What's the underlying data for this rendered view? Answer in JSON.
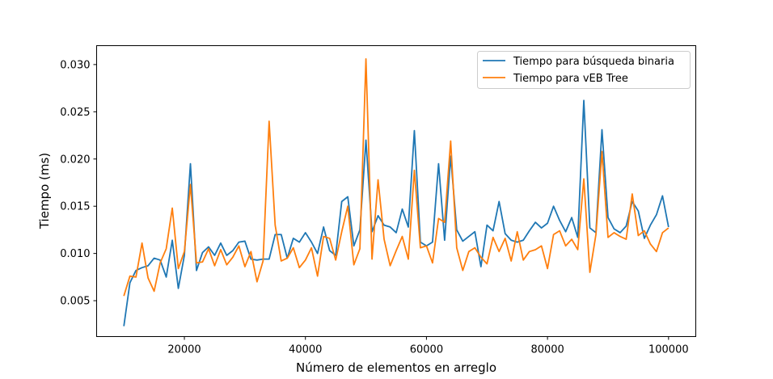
{
  "chart_data": {
    "type": "line",
    "title": "",
    "xlabel": "Número de elementos en arreglo",
    "ylabel": "Tiempo (ms)",
    "xlim": [
      5500,
      104500
    ],
    "ylim": [
      0.0012,
      0.032
    ],
    "x_ticks": [
      20000,
      40000,
      60000,
      80000,
      100000
    ],
    "x_tick_labels": [
      "20000",
      "40000",
      "60000",
      "80000",
      "100000"
    ],
    "y_ticks": [
      0.005,
      0.01,
      0.015,
      0.02,
      0.025,
      0.03
    ],
    "y_tick_labels": [
      "0.005",
      "0.010",
      "0.015",
      "0.020",
      "0.025",
      "0.030"
    ],
    "grid": false,
    "legend_position": "top-right",
    "x": [
      10000,
      11000,
      12000,
      13000,
      14000,
      15000,
      16000,
      17000,
      18000,
      19000,
      20000,
      21000,
      22000,
      23000,
      24000,
      25000,
      26000,
      27000,
      28000,
      29000,
      30000,
      31000,
      32000,
      33000,
      34000,
      35000,
      36000,
      37000,
      38000,
      39000,
      40000,
      41000,
      42000,
      43000,
      44000,
      45000,
      46000,
      47000,
      48000,
      49000,
      50000,
      51000,
      52000,
      53000,
      54000,
      55000,
      56000,
      57000,
      58000,
      59000,
      60000,
      61000,
      62000,
      63000,
      64000,
      65000,
      66000,
      67000,
      68000,
      69000,
      70000,
      71000,
      72000,
      73000,
      74000,
      75000,
      76000,
      77000,
      78000,
      79000,
      80000,
      81000,
      82000,
      83000,
      84000,
      85000,
      86000,
      87000,
      88000,
      89000,
      90000,
      91000,
      92000,
      93000,
      94000,
      95000,
      96000,
      97000,
      98000,
      99000,
      100000
    ],
    "series": [
      {
        "name": "Tiempo para búsqueda binaria",
        "color": "#1f77b4",
        "values": [
          0.0023,
          0.0069,
          0.0082,
          0.0085,
          0.0087,
          0.0095,
          0.0093,
          0.0075,
          0.0114,
          0.0063,
          0.0098,
          0.0195,
          0.0082,
          0.0101,
          0.0107,
          0.0098,
          0.0111,
          0.0098,
          0.0103,
          0.0112,
          0.0113,
          0.0094,
          0.0093,
          0.0094,
          0.0094,
          0.012,
          0.012,
          0.0095,
          0.0116,
          0.0112,
          0.0122,
          0.0112,
          0.01,
          0.0128,
          0.0103,
          0.0098,
          0.0155,
          0.016,
          0.0108,
          0.0125,
          0.022,
          0.0123,
          0.014,
          0.013,
          0.0128,
          0.0122,
          0.0147,
          0.0128,
          0.023,
          0.0112,
          0.0108,
          0.0112,
          0.0195,
          0.0114,
          0.0203,
          0.0125,
          0.0113,
          0.0118,
          0.0123,
          0.0086,
          0.013,
          0.0124,
          0.0155,
          0.0121,
          0.0114,
          0.0112,
          0.0114,
          0.0124,
          0.0133,
          0.0127,
          0.0132,
          0.015,
          0.0135,
          0.0123,
          0.0138,
          0.0117,
          0.0262,
          0.0127,
          0.0122,
          0.0231,
          0.0138,
          0.0126,
          0.0122,
          0.0129,
          0.0155,
          0.0145,
          0.0116,
          0.013,
          0.0141,
          0.0161,
          0.0128
        ]
      },
      {
        "name": "Tiempo para vEB Tree",
        "color": "#ff7f0e",
        "values": [
          0.0055,
          0.0076,
          0.0075,
          0.0111,
          0.0074,
          0.006,
          0.009,
          0.0105,
          0.0148,
          0.0084,
          0.0102,
          0.0173,
          0.009,
          0.0091,
          0.0105,
          0.0087,
          0.0104,
          0.0088,
          0.0096,
          0.0108,
          0.0086,
          0.0102,
          0.007,
          0.0092,
          0.024,
          0.013,
          0.0092,
          0.0095,
          0.0106,
          0.0085,
          0.0093,
          0.0106,
          0.0076,
          0.0118,
          0.0116,
          0.0093,
          0.0123,
          0.015,
          0.0088,
          0.0105,
          0.0306,
          0.0094,
          0.0178,
          0.0115,
          0.0087,
          0.0103,
          0.0118,
          0.0094,
          0.0188,
          0.0106,
          0.0108,
          0.009,
          0.0137,
          0.0133,
          0.0219,
          0.0106,
          0.0082,
          0.0102,
          0.0106,
          0.0096,
          0.0089,
          0.0117,
          0.0102,
          0.0116,
          0.0092,
          0.0123,
          0.0093,
          0.0102,
          0.0104,
          0.0108,
          0.0084,
          0.012,
          0.0124,
          0.0108,
          0.0115,
          0.0104,
          0.0179,
          0.008,
          0.012,
          0.0208,
          0.0117,
          0.0122,
          0.0118,
          0.0115,
          0.0163,
          0.0119,
          0.0124,
          0.011,
          0.0102,
          0.0122,
          0.0127
        ]
      }
    ]
  }
}
